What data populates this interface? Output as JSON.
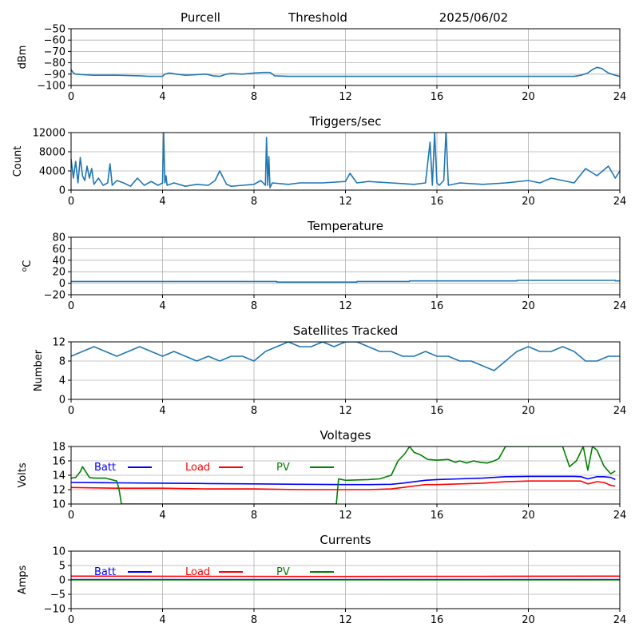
{
  "header": {
    "site": "Purcell",
    "mode": "Threshold",
    "date": "2025/06/02"
  },
  "colors": {
    "line": "#1f77b4",
    "grid": "#b0b0b0",
    "batt": "#0000ff",
    "load": "#ff0000",
    "pv": "#008000"
  },
  "chart_data": [
    {
      "id": "signal",
      "type": "line",
      "title": "",
      "xlabel": "",
      "ylabel": "dBm",
      "xlim": [
        0,
        24
      ],
      "ylim": [
        -100,
        -50
      ],
      "xticks": [
        0,
        4,
        8,
        12,
        16,
        20,
        24
      ],
      "yticks": [
        -100,
        -90,
        -80,
        -70,
        -60,
        -50
      ],
      "grid": true,
      "series": [
        {
          "color": "#1f77b4",
          "x": [
            0,
            0.1,
            0.2,
            0.5,
            1,
            2,
            3,
            3.4,
            3.6,
            4,
            4.1,
            4.3,
            4.6,
            5,
            5.5,
            5.9,
            6.2,
            6.5,
            6.8,
            7,
            7.5,
            8,
            8.4,
            8.7,
            8.9,
            9.5,
            10,
            11,
            12,
            13,
            14,
            15,
            16,
            17,
            18,
            19,
            20,
            21,
            22,
            22.3,
            22.6,
            22.8,
            23,
            23.2,
            23.5,
            23.8,
            24
          ],
          "y": [
            -86,
            -89,
            -90,
            -90.5,
            -91,
            -91,
            -91.5,
            -92,
            -92,
            -92,
            -90,
            -89,
            -90,
            -91,
            -90.5,
            -90,
            -91.5,
            -92,
            -90,
            -89.5,
            -90,
            -89,
            -88.5,
            -88.5,
            -91.5,
            -92,
            -92,
            -92,
            -92,
            -92,
            -92,
            -92,
            -92,
            -92,
            -92,
            -92,
            -92,
            -92,
            -92,
            -91,
            -89,
            -86,
            -84,
            -85,
            -89,
            -91,
            -92
          ]
        }
      ]
    },
    {
      "id": "triggers",
      "type": "line",
      "title": "Triggers/sec",
      "xlabel": "",
      "ylabel": "Count",
      "xlim": [
        0,
        24
      ],
      "ylim": [
        0,
        12000
      ],
      "xticks": [
        0,
        4,
        8,
        12,
        16,
        20,
        24
      ],
      "yticks": [
        0,
        4000,
        8000,
        12000
      ],
      "grid": true,
      "series": [
        {
          "color": "#1f77b4",
          "x": [
            0,
            0.1,
            0.2,
            0.3,
            0.4,
            0.5,
            0.6,
            0.7,
            0.8,
            0.9,
            1.0,
            1.2,
            1.4,
            1.6,
            1.7,
            1.8,
            2.0,
            2.3,
            2.6,
            2.9,
            3.2,
            3.5,
            3.8,
            4.0,
            4.05,
            4.1,
            4.15,
            4.2,
            4.5,
            5.0,
            5.5,
            6.0,
            6.3,
            6.5,
            6.8,
            7.0,
            7.5,
            8.0,
            8.3,
            8.5,
            8.55,
            8.6,
            8.65,
            8.7,
            8.8,
            9.5,
            10,
            11,
            12,
            12.2,
            12.5,
            13,
            14,
            15,
            15.5,
            15.7,
            15.8,
            15.9,
            16.0,
            16.1,
            16.3,
            16.4,
            16.5,
            17,
            18,
            19,
            20,
            20.5,
            21,
            22,
            22.5,
            23,
            23.5,
            23.8,
            24
          ],
          "y": [
            6500,
            2500,
            6000,
            1500,
            6800,
            3000,
            2000,
            5000,
            2500,
            4500,
            1200,
            2500,
            1000,
            1500,
            5500,
            1000,
            2000,
            1500,
            800,
            2500,
            1000,
            1800,
            1000,
            1500,
            12000,
            1500,
            3000,
            1000,
            1500,
            800,
            1200,
            1000,
            2000,
            4000,
            1200,
            800,
            1000,
            1200,
            2000,
            1000,
            11000,
            1000,
            7000,
            500,
            1500,
            1200,
            1500,
            1500,
            1800,
            3500,
            1500,
            1800,
            1500,
            1200,
            1500,
            10000,
            1000,
            12000,
            1500,
            1000,
            2000,
            12500,
            1000,
            1500,
            1200,
            1500,
            2000,
            1500,
            2500,
            1500,
            4500,
            3000,
            5000,
            2500,
            4000
          ]
        }
      ]
    },
    {
      "id": "temperature",
      "type": "line",
      "title": "Temperature",
      "xlabel": "",
      "ylabel": "°C",
      "ylabel_super": "o",
      "ylabel_main": "C",
      "xlim": [
        0,
        24
      ],
      "ylim": [
        -20,
        80
      ],
      "xticks": [
        0,
        4,
        8,
        12,
        16,
        20,
        24
      ],
      "yticks": [
        -20,
        0,
        20,
        40,
        60,
        80
      ],
      "grid": true,
      "series": [
        {
          "color": "#1f77b4",
          "x": [
            0,
            9,
            9,
            12.5,
            12.5,
            14.8,
            14.8,
            19.5,
            19.5,
            23.8,
            23.8,
            24
          ],
          "y": [
            3,
            3,
            2,
            2,
            3,
            3,
            4,
            4,
            5,
            5,
            4,
            4
          ]
        }
      ]
    },
    {
      "id": "satellites",
      "type": "line",
      "title": "Satellites Tracked",
      "xlabel": "",
      "ylabel": "Number",
      "xlim": [
        0,
        24
      ],
      "ylim": [
        0,
        12
      ],
      "xticks": [
        0,
        4,
        8,
        12,
        16,
        20,
        24
      ],
      "yticks": [
        0,
        4,
        8,
        12
      ],
      "grid": true,
      "series": [
        {
          "color": "#1f77b4",
          "x": [
            0,
            0.5,
            1,
            1.5,
            2,
            2.5,
            3,
            3.5,
            4,
            4.5,
            5,
            5.5,
            6,
            6.5,
            7,
            7.5,
            8,
            8.5,
            9,
            9.5,
            10,
            10.5,
            11,
            11.5,
            12,
            12.5,
            13,
            13.5,
            14,
            14.5,
            15,
            15.5,
            16,
            16.5,
            17,
            17.5,
            18,
            18.5,
            19,
            19.5,
            20,
            20.5,
            21,
            21.5,
            22,
            22.5,
            23,
            23.5,
            24
          ],
          "y": [
            9,
            10,
            11,
            10,
            9,
            10,
            11,
            10,
            9,
            10,
            9,
            8,
            9,
            8,
            9,
            9,
            8,
            10,
            11,
            12,
            11,
            11,
            12,
            11,
            12,
            12,
            11,
            10,
            10,
            9,
            9,
            10,
            9,
            9,
            8,
            8,
            7,
            6,
            8,
            10,
            11,
            10,
            10,
            11,
            10,
            8,
            8,
            9,
            9
          ]
        }
      ]
    },
    {
      "id": "voltages",
      "type": "line",
      "title": "Voltages",
      "xlabel": "",
      "ylabel": "Volts",
      "xlim": [
        0,
        24
      ],
      "ylim": [
        10,
        18
      ],
      "xticks": [
        0,
        4,
        8,
        12,
        16,
        20,
        24
      ],
      "yticks": [
        10,
        12,
        14,
        16,
        18
      ],
      "grid": true,
      "legend": "top-left",
      "series": [
        {
          "name": "Batt",
          "color": "#0000ff",
          "x": [
            0,
            2,
            4,
            6,
            8,
            10,
            12,
            13,
            14,
            14.5,
            15,
            15.5,
            16,
            17,
            18,
            18.5,
            19,
            20,
            21,
            22,
            22.3,
            22.6,
            23,
            23.3,
            23.6,
            23.8
          ],
          "y": [
            13.0,
            12.95,
            12.9,
            12.85,
            12.8,
            12.75,
            12.7,
            12.7,
            12.75,
            12.9,
            13.1,
            13.3,
            13.4,
            13.5,
            13.6,
            13.7,
            13.8,
            13.85,
            13.85,
            13.85,
            13.8,
            13.5,
            13.8,
            13.8,
            13.7,
            13.4
          ]
        },
        {
          "name": "Load",
          "color": "#ff0000",
          "x": [
            0,
            2,
            4,
            6,
            8,
            10,
            12,
            13,
            14,
            14.5,
            15,
            15.5,
            16,
            17,
            18,
            18.5,
            19,
            20,
            21,
            22,
            22.3,
            22.6,
            23,
            23.3,
            23.6,
            23.8
          ],
          "y": [
            12.3,
            12.2,
            12.2,
            12.1,
            12.1,
            12.0,
            12.0,
            12.0,
            12.1,
            12.3,
            12.5,
            12.7,
            12.7,
            12.8,
            12.9,
            13.0,
            13.1,
            13.2,
            13.2,
            13.2,
            13.2,
            12.8,
            13.1,
            13.0,
            12.6,
            12.5
          ]
        },
        {
          "name": "PV",
          "color": "#008000",
          "x": [
            0,
            0.2,
            0.4,
            0.5,
            0.8,
            1.0,
            1.5,
            2.0,
            2.1,
            2.2,
            11.6,
            11.7,
            12.0,
            13.0,
            13.5,
            14.0,
            14.3,
            14.6,
            14.8,
            15.0,
            15.3,
            15.6,
            16.0,
            16.5,
            16.8,
            17.0,
            17.3,
            17.6,
            17.9,
            18.2,
            18.5,
            18.7,
            19.0,
            21.5,
            21.8,
            22.1,
            22.4,
            22.6,
            22.8,
            23.0,
            23.3,
            23.6,
            23.8
          ],
          "y": [
            13.6,
            13.7,
            14.5,
            15.2,
            13.7,
            13.6,
            13.6,
            13.2,
            12.0,
            10.0,
            10.0,
            13.5,
            13.3,
            13.4,
            13.5,
            14.0,
            16.0,
            17.0,
            18.0,
            17.2,
            16.8,
            16.2,
            16.1,
            16.2,
            15.8,
            16.0,
            15.7,
            16.0,
            15.8,
            15.7,
            16.0,
            16.3,
            18.0,
            18.0,
            15.2,
            16.0,
            18.0,
            14.7,
            18.0,
            17.5,
            15.3,
            14.2,
            14.6
          ]
        }
      ]
    },
    {
      "id": "currents",
      "type": "line",
      "title": "Currents",
      "xlabel": "",
      "ylabel": "Amps",
      "xlim": [
        0,
        24
      ],
      "ylim": [
        -10,
        10
      ],
      "xticks": [
        0,
        4,
        8,
        12,
        16,
        20,
        24
      ],
      "yticks": [
        -10,
        -5,
        0,
        5,
        10
      ],
      "grid": true,
      "legend": "top-left",
      "series": [
        {
          "name": "Batt",
          "color": "#0000ff",
          "x": [
            0,
            24
          ],
          "y": [
            0.1,
            0.1
          ]
        },
        {
          "name": "Load",
          "color": "#ff0000",
          "x": [
            0,
            6,
            12,
            18,
            24
          ],
          "y": [
            1.3,
            1.25,
            1.2,
            1.25,
            1.3
          ]
        },
        {
          "name": "PV",
          "color": "#008000",
          "x": [
            0,
            24
          ],
          "y": [
            0.0,
            0.0
          ]
        }
      ]
    }
  ]
}
